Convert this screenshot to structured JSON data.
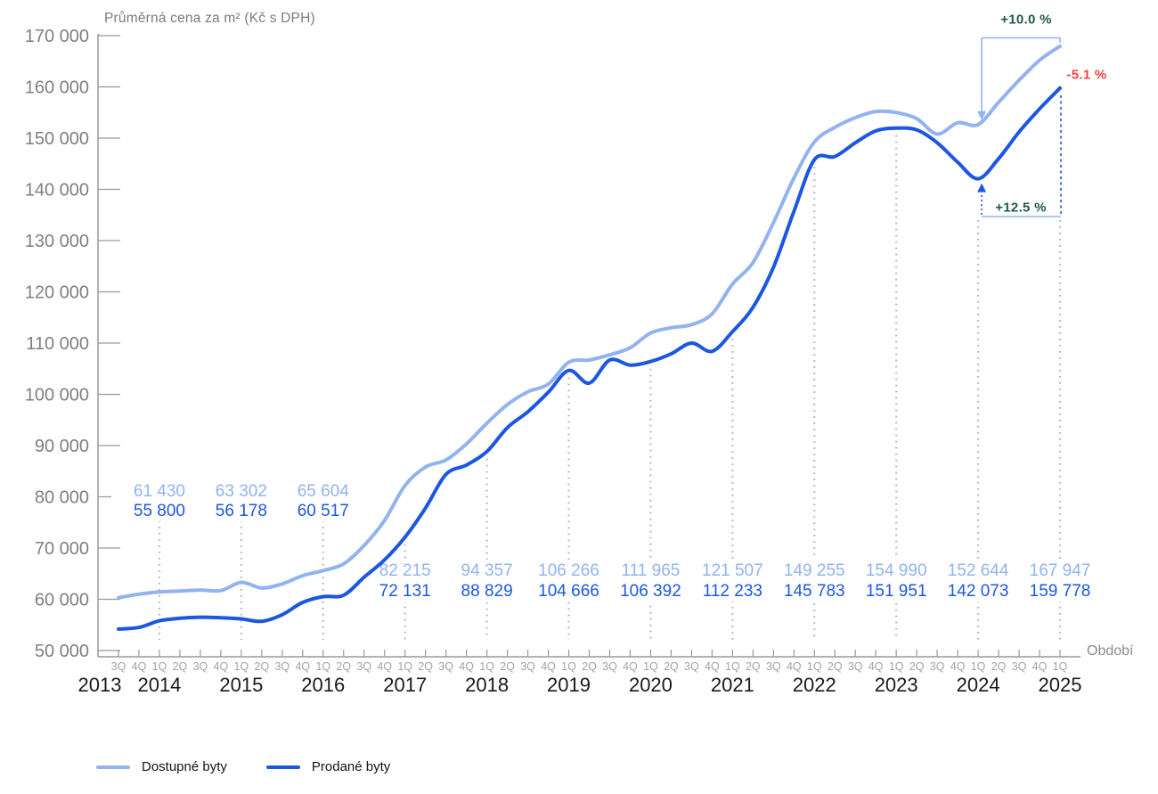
{
  "title": "Průměrná cena za m² (Kč s DPH)",
  "x_axis_title": "Období",
  "colors": {
    "dostupne": "#92B3F0",
    "prodane": "#1C57E2",
    "green": "#1E5B4C",
    "red": "#F4453C",
    "axis": "#999999",
    "y_tick_label": "#7f7f7f",
    "quarter_label": "#a3a3a3",
    "year_label": "#1a1a1a",
    "dotted_line": "#b3b3b3"
  },
  "legend": {
    "items": [
      {
        "label": "Dostupné byty",
        "series": "dostupne"
      },
      {
        "label": "Prodané byty",
        "series": "prodane"
      }
    ]
  },
  "annotations": {
    "dostupne_growth": {
      "text": "+10.0 %"
    },
    "gap_drop": {
      "text": "-5.1 %"
    },
    "prodane_growth": {
      "text": "+12.5 %"
    }
  },
  "chart_data": {
    "type": "line",
    "title": "Průměrná cena za m² (Kč s DPH)",
    "xlabel": "Období",
    "ylabel": "Kč s DPH",
    "ylim": [
      50000,
      170000
    ],
    "y_ticks": [
      50000,
      60000,
      70000,
      80000,
      90000,
      100000,
      110000,
      120000,
      130000,
      140000,
      150000,
      160000,
      170000
    ],
    "grid": false,
    "legend_position": "bottom-left",
    "quarters": [
      "3Q",
      "4Q",
      "1Q",
      "2Q",
      "3Q",
      "4Q",
      "1Q",
      "2Q",
      "3Q",
      "4Q",
      "1Q",
      "2Q",
      "3Q",
      "4Q",
      "1Q",
      "2Q",
      "3Q",
      "4Q",
      "1Q",
      "2Q",
      "3Q",
      "4Q",
      "1Q",
      "2Q",
      "3Q",
      "4Q",
      "1Q",
      "2Q",
      "3Q",
      "4Q",
      "1Q",
      "2Q",
      "3Q",
      "4Q",
      "1Q",
      "2Q",
      "3Q",
      "4Q",
      "1Q",
      "2Q",
      "3Q",
      "4Q",
      "1Q",
      "2Q",
      "3Q",
      "4Q",
      "1Q"
    ],
    "years": [
      {
        "label": "2013",
        "x": 112
      },
      {
        "label": "2014",
        "qi": 2
      },
      {
        "label": "2015",
        "qi": 6
      },
      {
        "label": "2016",
        "qi": 10
      },
      {
        "label": "2017",
        "qi": 14
      },
      {
        "label": "2018",
        "qi": 18
      },
      {
        "label": "2019",
        "qi": 22
      },
      {
        "label": "2020",
        "qi": 26
      },
      {
        "label": "2021",
        "qi": 30
      },
      {
        "label": "2022",
        "qi": 34
      },
      {
        "label": "2023",
        "qi": 38
      },
      {
        "label": "2024",
        "qi": 42
      },
      {
        "label": "2025",
        "qi": 46
      }
    ],
    "series": [
      {
        "name": "Dostupné byty",
        "key": "dostupne",
        "values": [
          60300,
          61000,
          61430,
          61600,
          61800,
          61700,
          63302,
          62200,
          63000,
          64600,
          65604,
          66900,
          70500,
          75400,
          82215,
          85800,
          87200,
          90300,
          94357,
          98000,
          100500,
          102000,
          106266,
          106700,
          107700,
          109100,
          111965,
          113000,
          113600,
          115700,
          121507,
          125700,
          133500,
          142200,
          149255,
          152100,
          154000,
          155200,
          154990,
          153800,
          150800,
          153000,
          152644,
          157000,
          161300,
          165200,
          167947
        ]
      },
      {
        "name": "Prodané byty",
        "key": "prodane",
        "values": [
          54200,
          54500,
          55800,
          56300,
          56500,
          56400,
          56178,
          55700,
          57000,
          59400,
          60517,
          60800,
          64300,
          67700,
          72131,
          77800,
          84400,
          86200,
          88829,
          93500,
          96600,
          100400,
          104666,
          102200,
          106700,
          105700,
          106392,
          107900,
          110000,
          108400,
          112233,
          117000,
          124800,
          135700,
          145783,
          146400,
          149100,
          151400,
          151951,
          151600,
          149100,
          145300,
          142073,
          146000,
          151200,
          155700,
          159778
        ]
      }
    ],
    "callouts": [
      {
        "qi": 2,
        "dostupne": 61430,
        "prodane": 55800,
        "position": "above"
      },
      {
        "qi": 6,
        "dostupne": 63302,
        "prodane": 56178,
        "position": "above"
      },
      {
        "qi": 10,
        "dostupne": 65604,
        "prodane": 60517,
        "position": "above"
      },
      {
        "qi": 14,
        "dostupne": 82215,
        "prodane": 72131,
        "position": "below"
      },
      {
        "qi": 18,
        "dostupne": 94357,
        "prodane": 88829,
        "position": "below"
      },
      {
        "qi": 22,
        "dostupne": 106266,
        "prodane": 104666,
        "position": "below"
      },
      {
        "qi": 26,
        "dostupne": 111965,
        "prodane": 106392,
        "position": "below"
      },
      {
        "qi": 30,
        "dostupne": 121507,
        "prodane": 112233,
        "position": "below"
      },
      {
        "qi": 34,
        "dostupne": 149255,
        "prodane": 145783,
        "position": "below"
      },
      {
        "qi": 38,
        "dostupne": 154990,
        "prodane": 151951,
        "position": "below"
      },
      {
        "qi": 42,
        "dostupne": 152644,
        "prodane": 142073,
        "position": "below",
        "annotated": true
      },
      {
        "qi": 46,
        "dostupne": 167947,
        "prodane": 159778,
        "position": "below",
        "annotated": true
      }
    ]
  }
}
